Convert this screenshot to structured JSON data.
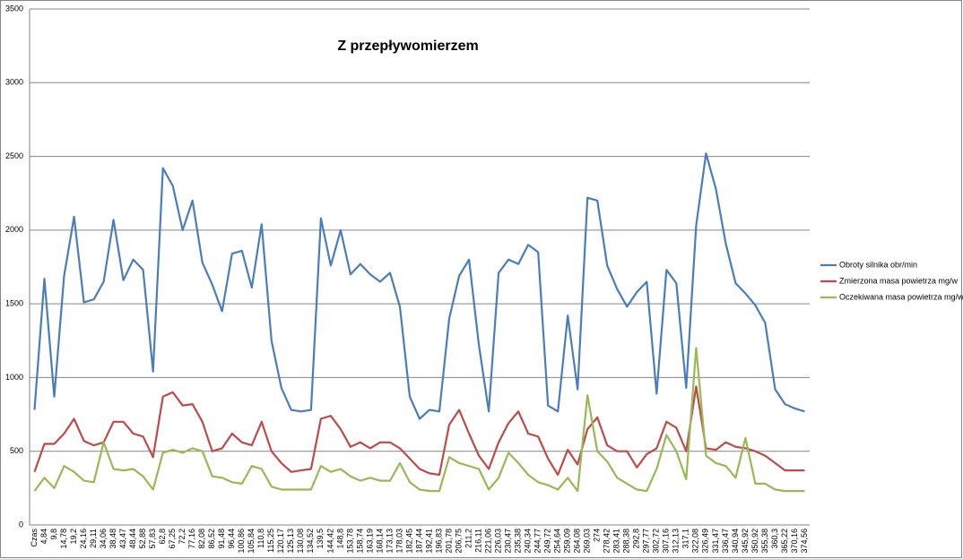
{
  "chart_data": {
    "type": "line",
    "title": "Z przepływomierzem",
    "categories": [
      "Czas",
      "4,84",
      "9,8",
      "14,78",
      "19,2",
      "24,16",
      "29,11",
      "34,06",
      "38,48",
      "43,47",
      "48,44",
      "52,88",
      "57,83",
      "62,8",
      "67,25",
      "72,2",
      "77,16",
      "82,08",
      "86,52",
      "91,48",
      "96,44",
      "100,86",
      "105,84",
      "110,8",
      "115,25",
      "120,17",
      "125,13",
      "130,08",
      "134,52",
      "139,5",
      "144,42",
      "148,8",
      "153,78",
      "158,74",
      "163,19",
      "168,14",
      "173,13",
      "178,03",
      "182,45",
      "187,44",
      "192,41",
      "196,83",
      "201,78",
      "206,75",
      "211,2",
      "216,11",
      "221,06",
      "226,03",
      "230,47",
      "235,38",
      "240,34",
      "244,77",
      "249,72",
      "254,64",
      "259,09",
      "264,08",
      "269,03",
      "274",
      "278,42",
      "283,41",
      "288,38",
      "292,8",
      "297,77",
      "302,72",
      "307,16",
      "312,13",
      "317,1",
      "322,08",
      "326,49",
      "331,47",
      "336,47",
      "340,94",
      "345,92",
      "350,92",
      "355,38",
      "360,3",
      "365,22",
      "370,16",
      "374,56"
    ],
    "series": [
      {
        "name": "Obroty silnika obr/min",
        "color": "#4a7ebb",
        "values": [
          780,
          1670,
          870,
          1690,
          2090,
          1510,
          1530,
          1650,
          2070,
          1660,
          1800,
          1730,
          1040,
          2420,
          2300,
          2000,
          2200,
          1780,
          1630,
          1450,
          1840,
          1860,
          1610,
          2040,
          1250,
          930,
          780,
          770,
          780,
          2080,
          1760,
          2000,
          1700,
          1770,
          1700,
          1650,
          1710,
          1480,
          870,
          720,
          780,
          770,
          1400,
          1690,
          1800,
          1220,
          770,
          1710,
          1800,
          1770,
          1900,
          1850,
          810,
          770,
          1420,
          920,
          2220,
          2200,
          1760,
          1600,
          1480,
          1580,
          1650,
          890,
          1730,
          1640,
          930,
          2030,
          2520,
          2280,
          1910,
          1640,
          1570,
          1490,
          1370,
          920,
          820,
          790,
          770
        ]
      },
      {
        "name": "Zmierzona masa powietrza mg/w",
        "color": "#be4b48",
        "values": [
          360,
          550,
          550,
          620,
          720,
          570,
          540,
          560,
          700,
          700,
          620,
          600,
          460,
          870,
          900,
          810,
          820,
          700,
          500,
          520,
          620,
          560,
          540,
          700,
          500,
          420,
          360,
          370,
          380,
          720,
          740,
          650,
          530,
          560,
          520,
          560,
          560,
          520,
          450,
          380,
          350,
          340,
          680,
          780,
          620,
          470,
          380,
          560,
          690,
          770,
          620,
          600,
          450,
          340,
          510,
          410,
          650,
          730,
          540,
          500,
          500,
          390,
          480,
          520,
          700,
          660,
          500,
          940,
          520,
          510,
          560,
          530,
          520,
          500,
          470,
          420,
          370,
          370,
          370
        ]
      },
      {
        "name": "Oczekiwana masa powietrza mg/w",
        "color": "#98b954",
        "values": [
          230,
          320,
          250,
          400,
          360,
          300,
          290,
          560,
          380,
          370,
          380,
          330,
          240,
          490,
          510,
          490,
          520,
          500,
          330,
          320,
          290,
          280,
          400,
          380,
          260,
          240,
          240,
          240,
          240,
          400,
          360,
          380,
          330,
          300,
          320,
          300,
          300,
          420,
          290,
          240,
          230,
          230,
          460,
          420,
          400,
          380,
          240,
          320,
          490,
          420,
          340,
          290,
          270,
          240,
          320,
          230,
          880,
          500,
          430,
          320,
          280,
          240,
          230,
          380,
          610,
          500,
          310,
          1200,
          470,
          420,
          400,
          320,
          590,
          280,
          280,
          240,
          230,
          230,
          230
        ]
      }
    ],
    "ylim": [
      0,
      3500
    ],
    "yticks": [
      0,
      500,
      1000,
      1500,
      2000,
      2500,
      3000,
      3500
    ],
    "grid": true,
    "legend": "right"
  }
}
